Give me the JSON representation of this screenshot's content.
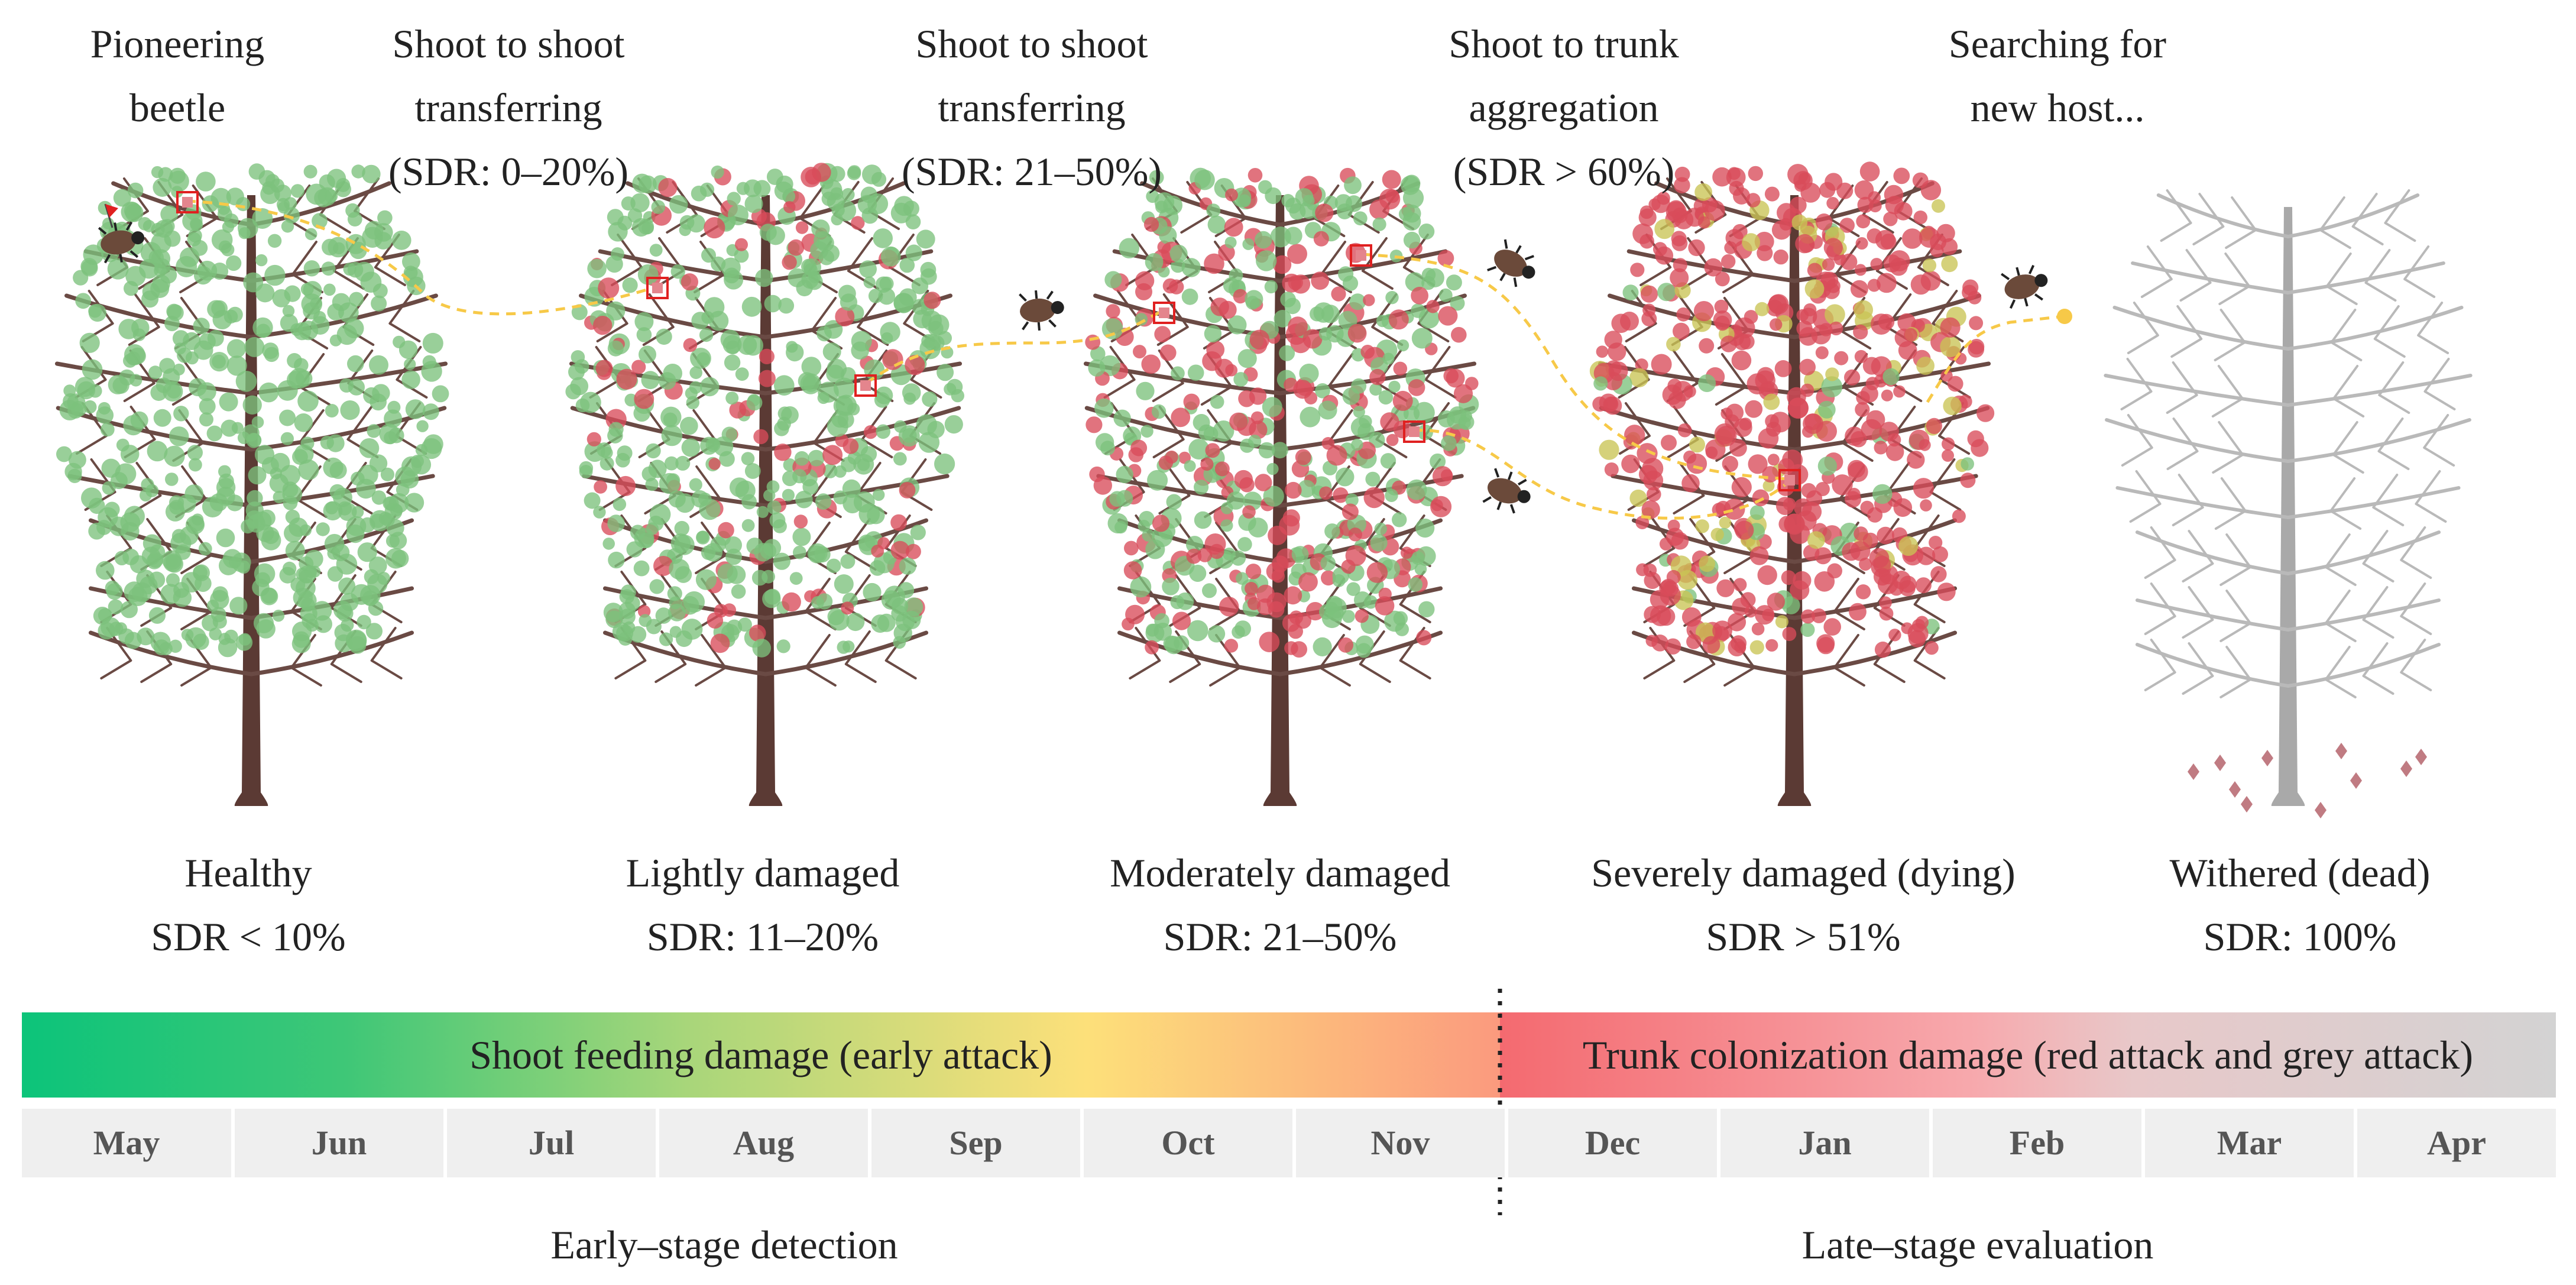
{
  "top_annotations": [
    {
      "lines": [
        "Pioneering",
        "beetle"
      ]
    },
    {
      "lines": [
        "Shoot to shoot",
        "transferring",
        "(SDR: 0–20%)"
      ]
    },
    {
      "lines": [
        "Shoot to shoot",
        "transferring",
        "(SDR: 21–50%)"
      ]
    },
    {
      "lines": [
        "Shoot to trunk",
        "aggregation",
        "(SDR > 60%)"
      ]
    },
    {
      "lines": [
        "Searching for",
        "new host..."
      ]
    }
  ],
  "stages": [
    {
      "name": "Healthy",
      "sdr": "SDR < 10%"
    },
    {
      "name": "Lightly damaged",
      "sdr": "SDR: 11–20%"
    },
    {
      "name": "Moderately damaged",
      "sdr": "SDR: 21–50%"
    },
    {
      "name": "Severely damaged (dying)",
      "sdr": "SDR > 51%"
    },
    {
      "name": "Withered (dead)",
      "sdr": "SDR: 100%"
    }
  ],
  "bar": {
    "left_label": "Shoot feeding damage (early attack)",
    "right_label": "Trunk colonization damage (red attack and grey attack)"
  },
  "months": [
    "May",
    "Jun",
    "Jul",
    "Aug",
    "Sep",
    "Oct",
    "Nov",
    "Dec",
    "Jan",
    "Feb",
    "Mar",
    "Apr"
  ],
  "bottom": {
    "left": "Early–stage detection",
    "right": "Late–stage evaluation"
  },
  "colors": {
    "healthy_green": "#7cc27c",
    "damaged_red": "#d94c5a",
    "yellow_leaf": "#c9c455",
    "trunk": "#5b3a34",
    "dead_grey": "#a9a9a9",
    "path_yellow": "#f7c948",
    "marker_red": "#e02020",
    "bar_green": "#0fc47a",
    "bar_yellow": "#fde07a",
    "bar_salmon": "#fb9a7e",
    "bar_red": "#f46e74",
    "bar_grey": "#d3d3d3"
  }
}
